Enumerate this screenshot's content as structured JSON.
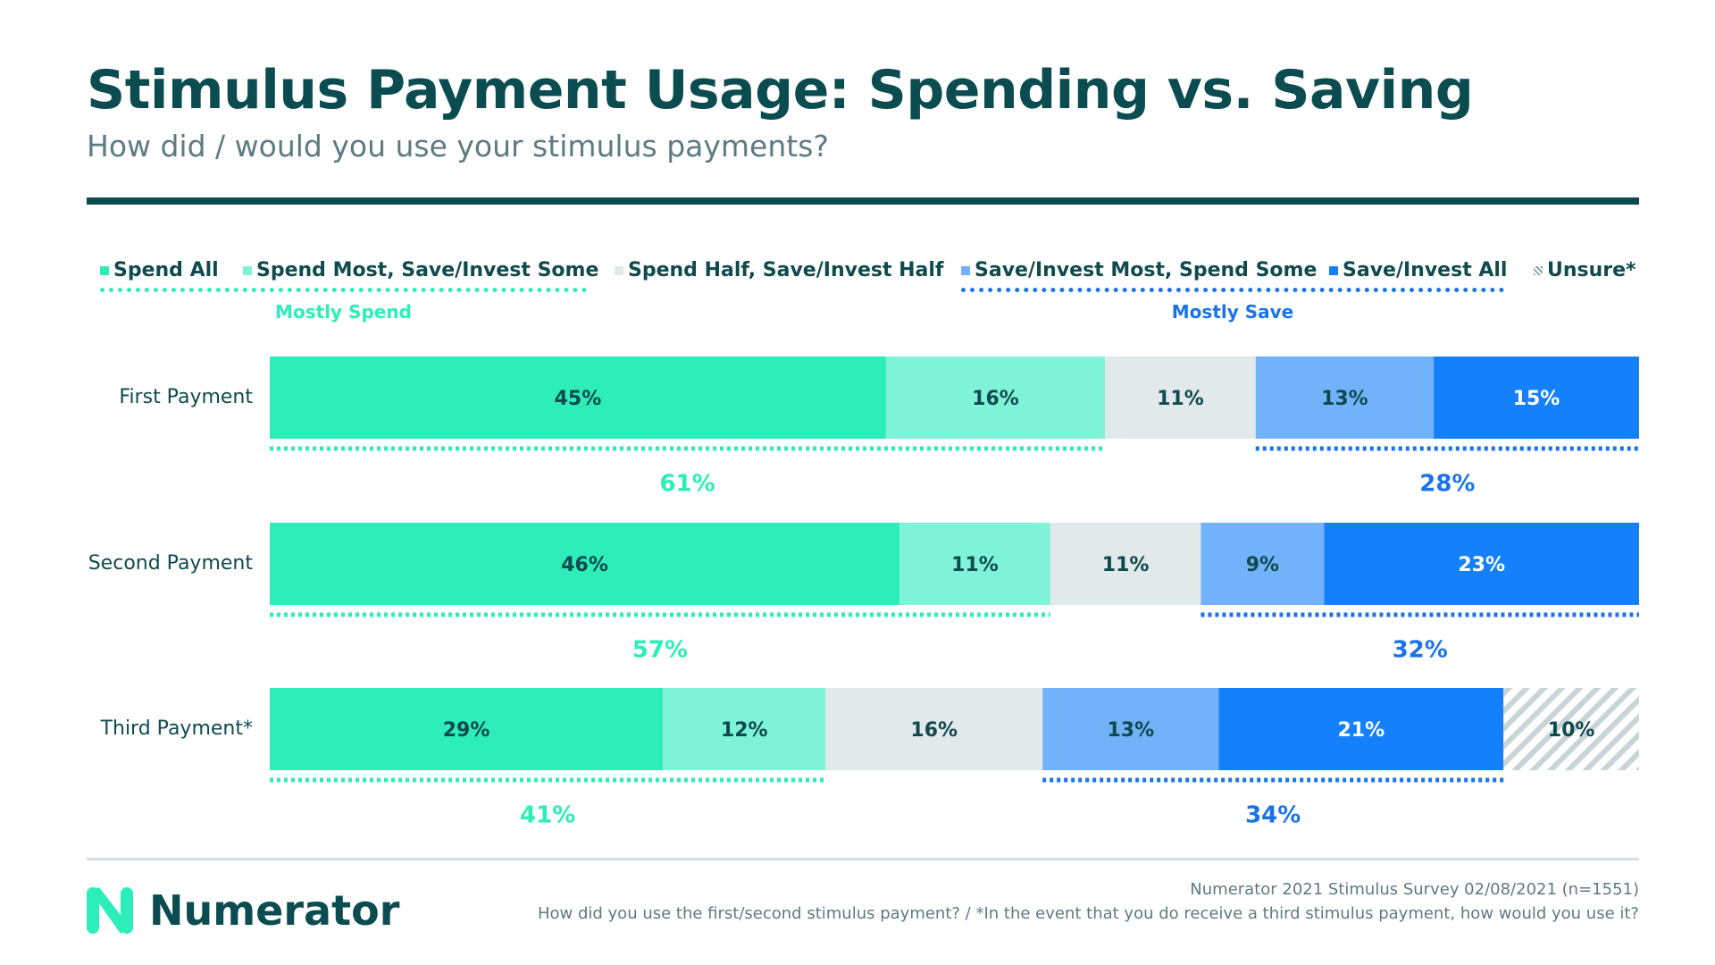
{
  "header": {
    "title": "Stimulus Payment Usage: Spending vs. Saving",
    "subtitle": "How did / would you use your stimulus payments?"
  },
  "legend": {
    "items": [
      {
        "label": "Spend All",
        "color": "#2dedb9"
      },
      {
        "label": "Spend Most, Save/Invest Some",
        "color": "#7ef3d7"
      },
      {
        "label": "Spend Half, Save/Invest Half",
        "color": "#e2e9ea"
      },
      {
        "label": "Save/Invest Most, Spend Some",
        "color": "#72b2fa"
      },
      {
        "label": "Save/Invest All",
        "color": "#1580fb"
      },
      {
        "label": "Unsure*",
        "color": "hatched"
      }
    ],
    "groups": {
      "spend_label": "Mostly Spend",
      "save_label": "Mostly Save",
      "spend_color": "#2dedb9",
      "save_color": "#1a74e8"
    }
  },
  "chart_data": {
    "type": "bar",
    "orientation": "horizontal",
    "stacked": true,
    "categories": [
      "First Payment",
      "Second Payment",
      "Third Payment*"
    ],
    "series": [
      {
        "name": "Spend All",
        "values": [
          45,
          46,
          29
        ],
        "labels": [
          "45%",
          "46%",
          "29%"
        ]
      },
      {
        "name": "Spend Most, Save/Invest Some",
        "values": [
          16,
          11,
          12
        ],
        "labels": [
          "16%",
          "11%",
          "12%"
        ]
      },
      {
        "name": "Spend Half, Save/Invest Half",
        "values": [
          11,
          11,
          16
        ],
        "labels": [
          "11%",
          "11%",
          "16%"
        ]
      },
      {
        "name": "Save/Invest Most, Spend Some",
        "values": [
          13,
          9,
          13
        ],
        "labels": [
          "13%",
          "9%",
          "13%"
        ]
      },
      {
        "name": "Save/Invest All",
        "values": [
          15,
          23,
          21
        ],
        "labels": [
          "15%",
          "23%",
          "21%"
        ]
      },
      {
        "name": "Unsure*",
        "values": [
          0,
          0,
          10
        ],
        "labels": [
          "",
          "",
          "10%"
        ]
      }
    ],
    "totals": {
      "mostly_spend": [
        "61%",
        "57%",
        "41%"
      ],
      "mostly_save": [
        "28%",
        "32%",
        "34%"
      ]
    }
  },
  "footer": {
    "logo_text": "Numerator",
    "source": "Numerator 2021 Stimulus Survey 02/08/2021 (n=1551)",
    "footnote": "How did you use the first/second stimulus payment? / *In the event that you do receive a third stimulus payment, how would you use it?"
  }
}
